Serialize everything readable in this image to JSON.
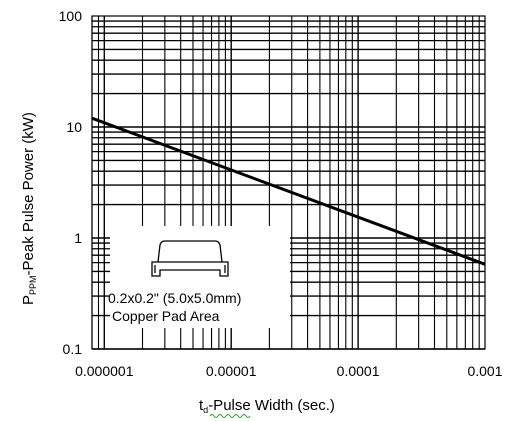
{
  "chart_data": {
    "type": "line",
    "x_scale": "log",
    "y_scale": "log",
    "xlim": [
      8e-07,
      0.001
    ],
    "ylim": [
      0.1,
      100
    ],
    "x_ticks": [
      "0.000001",
      "0.00001",
      "0.0001",
      "0.001"
    ],
    "y_ticks": [
      "0.1",
      "1",
      "10",
      "100"
    ],
    "grid": true,
    "xlabel": {
      "sub": "t",
      "sub_index": "d",
      "rest": "-Pulse Width (sec.)"
    },
    "ylabel": {
      "sub": "P",
      "sub_index": "PPM",
      "rest": "-Peak Pulse Power (kW)"
    },
    "series": [
      {
        "values": [
          {
            "x": 8e-07,
            "y": 12.0
          },
          {
            "x": 0.001,
            "y": 0.58
          }
        ]
      }
    ],
    "annotation": {
      "line1": "0.2x0.2\" (5.0x5.0mm)",
      "line2": "Copper Pad Area",
      "icon": "smd-package-icon"
    }
  }
}
